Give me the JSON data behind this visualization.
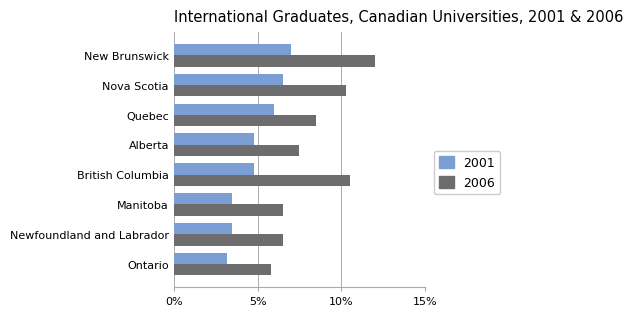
{
  "title": "International Graduates, Canadian Universities, 2001 & 2006",
  "categories": [
    "New Brunswick",
    "Nova Scotia",
    "Quebec",
    "Alberta",
    "British Columbia",
    "Manitoba",
    "Newfoundland and Labrador",
    "Ontario"
  ],
  "values_2001": [
    7.0,
    6.5,
    6.0,
    4.8,
    4.8,
    3.5,
    3.5,
    3.2
  ],
  "values_2006": [
    12.0,
    10.3,
    8.5,
    7.5,
    10.5,
    6.5,
    6.5,
    5.8
  ],
  "color_2001": "#7b9fd4",
  "color_2006": "#6d6d6d",
  "legend_labels": [
    "2001",
    "2006"
  ],
  "xlim": [
    0,
    15
  ],
  "xticks": [
    0,
    5,
    10,
    15
  ],
  "xticklabels": [
    "0%",
    "5%",
    "10%",
    "15%"
  ],
  "background_color": "#ffffff",
  "bar_height": 0.38,
  "title_fontsize": 10.5,
  "tick_fontsize": 8,
  "legend_fontsize": 9
}
